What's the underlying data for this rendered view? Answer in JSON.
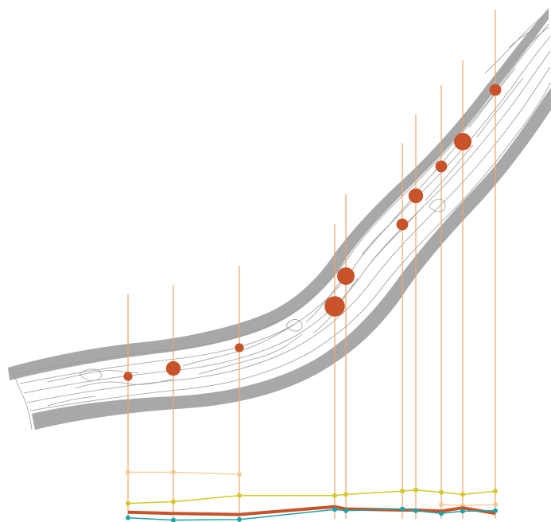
{
  "chart_data": {
    "type": "scatter",
    "title": "",
    "xlabel": "",
    "ylabel": "",
    "grid": false,
    "legend": "none",
    "colors": {
      "map": "#9b9b9b",
      "bubble": "#c8532a",
      "stem": "#f2a46a",
      "series_dark_orange": "#c8532a",
      "series_light_orange": "#f6c98e",
      "series_yellow": "#d4c928",
      "series_teal": "#1aa3a8"
    },
    "sites": [
      {
        "id": 1,
        "size": 2
      },
      {
        "id": 2,
        "size": 4
      },
      {
        "id": 3,
        "size": 2
      },
      {
        "id": 4,
        "size": 6
      },
      {
        "id": 5,
        "size": 5
      },
      {
        "id": 6,
        "size": 3
      },
      {
        "id": 7,
        "size": 4
      },
      {
        "id": 8,
        "size": 3
      },
      {
        "id": 9,
        "size": 5
      },
      {
        "id": 10,
        "size": 3
      }
    ],
    "series": [
      {
        "color_key": "series_light_orange",
        "values": [
          8.8,
          8.8,
          8.4,
          null,
          null,
          null,
          null,
          3.0,
          2.8,
          3.0
        ]
      },
      {
        "color_key": "series_yellow",
        "values": [
          3.2,
          3.5,
          4.6,
          4.6,
          4.8,
          5.4,
          5.6,
          5.2,
          4.8,
          5.4
        ]
      },
      {
        "color_key": "series_dark_orange",
        "values": [
          1.6,
          1.4,
          1.2,
          2.6,
          2.2,
          2.0,
          2.0,
          1.8,
          2.4,
          1.4
        ]
      },
      {
        "color_key": "series_teal",
        "values": [
          0.6,
          0.2,
          0.3,
          2.1,
          1.9,
          2.2,
          1.9,
          1.4,
          1.8,
          1.9
        ]
      }
    ]
  }
}
